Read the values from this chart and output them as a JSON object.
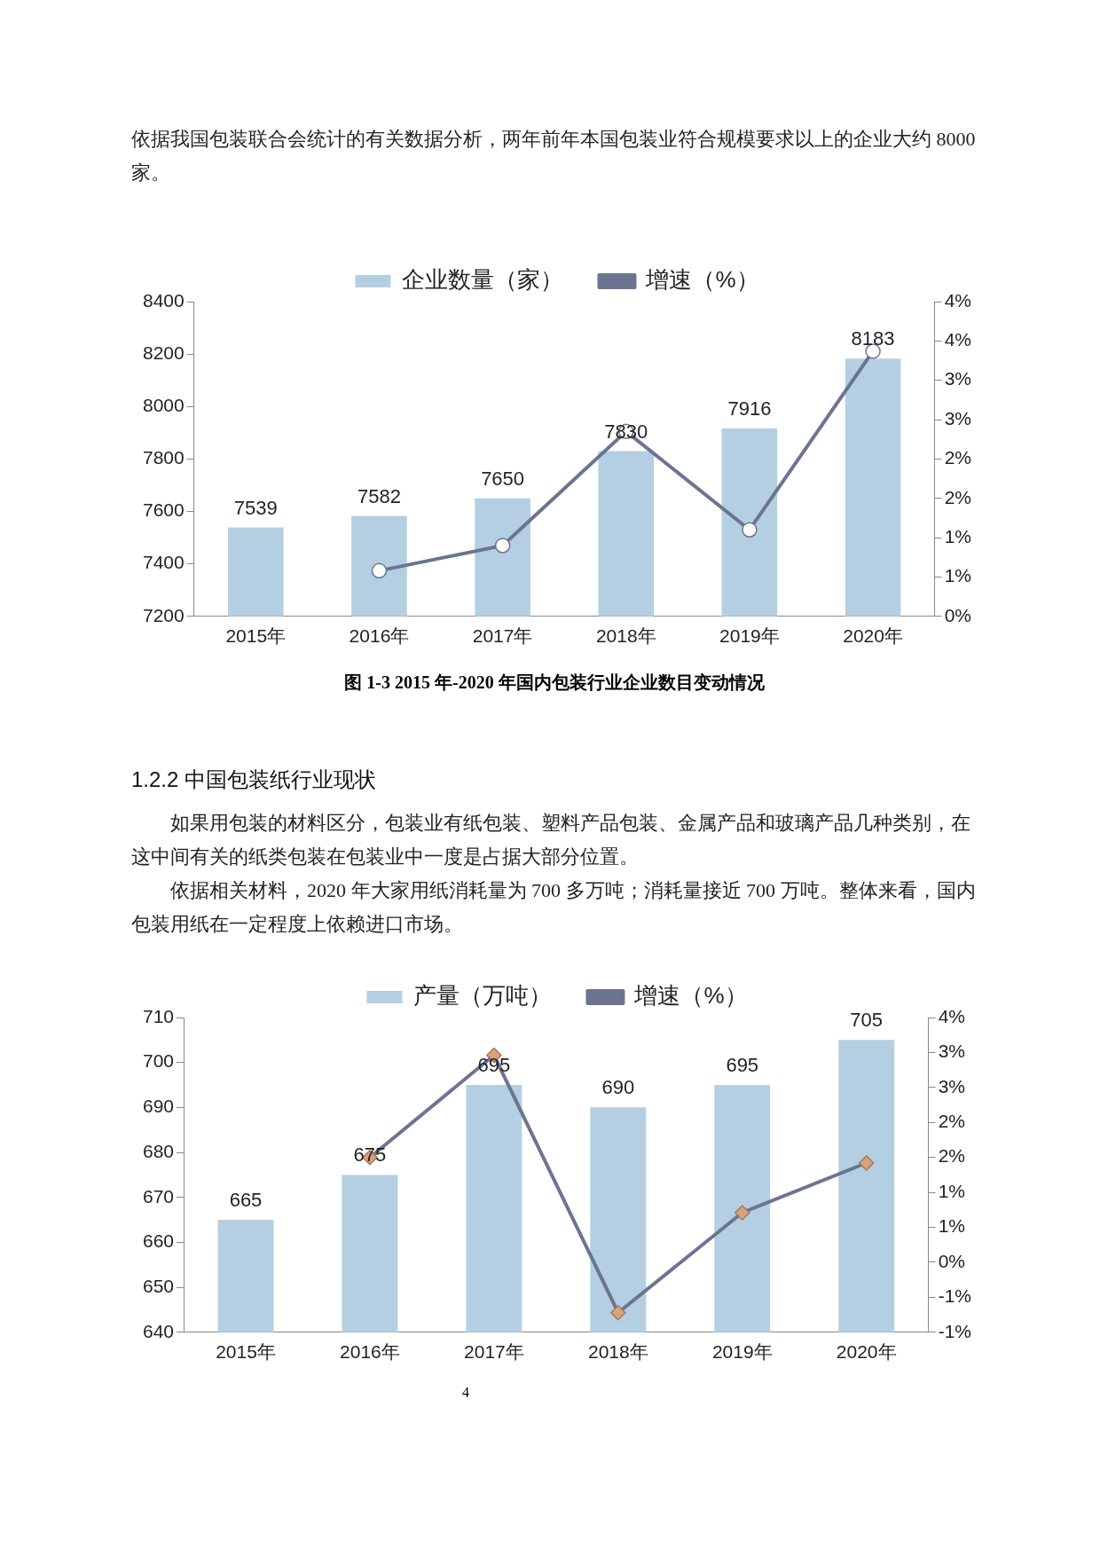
{
  "chart_data": [
    {
      "type": "bar",
      "title": "图 1-3 2015 年-2020 年国内包装行业企业数目变动情况",
      "annotations": [
        "依据我国包装联合会统计的有关数据分析，两年前年本国包装业符合规模要求以上的企业大约 8000 家。"
      ],
      "categories": [
        "2015年",
        "2016年",
        "2017年",
        "2018年",
        "2019年",
        "2020年"
      ],
      "series": [
        {
          "name": "企业数量（家）",
          "color": "#b4cfe2",
          "values": [
            7539,
            7582,
            7650,
            7830,
            7916,
            8183
          ],
          "value_labels": [
            "7539",
            "7582",
            "7650",
            "7830",
            "7916",
            "8183"
          ]
        },
        {
          "name": "增速（%）",
          "type": "line",
          "axis": "y2",
          "color": "#6b7592",
          "marker": "circle",
          "values": [
            null,
            0.58,
            0.9,
            2.35,
            1.1,
            3.37
          ]
        }
      ],
      "ylim": [
        7200,
        8400
      ],
      "yticks": [
        7200,
        7400,
        7600,
        7800,
        8000,
        8200,
        8400
      ],
      "y2lim": [
        0,
        4
      ],
      "y2ticks": [
        {
          "value": 0,
          "label": "0%"
        },
        {
          "value": 0.5,
          "label": "1%"
        },
        {
          "value": 1,
          "label": "1%"
        },
        {
          "value": 1.5,
          "label": "2%"
        },
        {
          "value": 2,
          "label": "2%"
        },
        {
          "value": 2.5,
          "label": "3%"
        },
        {
          "value": 3,
          "label": "3%"
        },
        {
          "value": 3.5,
          "label": "4%"
        },
        {
          "value": 4,
          "label": "4%"
        }
      ],
      "legend": "top",
      "grid": false
    },
    {
      "type": "bar",
      "annotations": [
        "1.2.2 中国包装纸行业现状",
        "如果用包装的材料区分，包装业有纸包装、塑料产品包装、金属产品和玻璃产品几种类别，在这中间有关的纸类包装在包装业中一度是占据大部分位置。",
        "依据相关材料，2020 年大家用纸消耗量为 700 多万吨；消耗量接近 700 万吨。整体来看，国内包装用纸在一定程度上依赖进口市场。",
        "4"
      ],
      "categories": [
        "2015年",
        "2016年",
        "2017年",
        "2018年",
        "2019年",
        "2020年"
      ],
      "series": [
        {
          "name": "产量（万吨）",
          "color": "#b4cfe2",
          "values": [
            665,
            675,
            695,
            690,
            695,
            705
          ],
          "value_labels": [
            "665",
            "675",
            "695",
            "690",
            "695",
            "705"
          ]
        },
        {
          "name": "增速（%）",
          "type": "line",
          "axis": "y2",
          "color": "#6b7592",
          "marker": "diamond",
          "values": [
            null,
            1.5,
            2.96,
            -0.72,
            0.71,
            1.42
          ]
        }
      ],
      "ylim": [
        640,
        710
      ],
      "yticks": [
        640,
        650,
        660,
        670,
        680,
        690,
        700,
        710
      ],
      "y2lim": [
        -1,
        3.5
      ],
      "y2ticks": [
        {
          "value": -1,
          "label": "-1%"
        },
        {
          "value": -0.5,
          "label": "-1%"
        },
        {
          "value": 0,
          "label": "0%"
        },
        {
          "value": 0.5,
          "label": "1%"
        },
        {
          "value": 1,
          "label": "1%"
        },
        {
          "value": 1.5,
          "label": "2%"
        },
        {
          "value": 2,
          "label": "2%"
        },
        {
          "value": 2.5,
          "label": "3%"
        },
        {
          "value": 3,
          "label": "3%"
        },
        {
          "value": 3.5,
          "label": "4%"
        }
      ],
      "legend": "top",
      "grid": false
    }
  ]
}
